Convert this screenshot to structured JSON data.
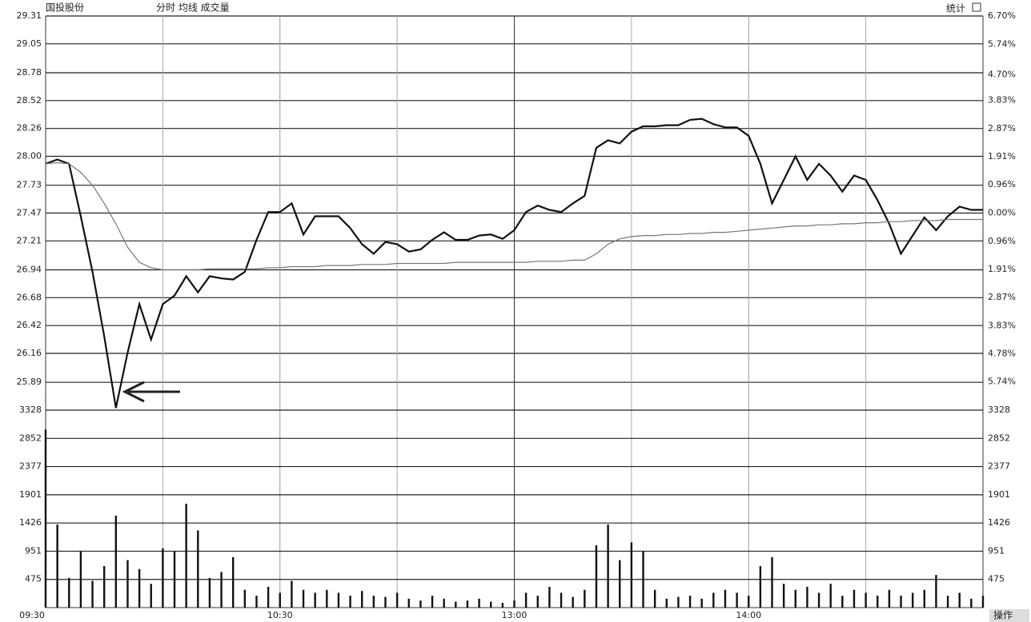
{
  "header": {
    "title": "国投股份",
    "tabs": "分时 均线 成交量",
    "stat": "统计",
    "action": "操作"
  },
  "chart_data": [
    {
      "type": "line",
      "x": [
        0,
        3,
        6,
        9,
        12,
        15,
        18,
        21,
        24,
        27,
        30,
        33,
        36,
        39,
        42,
        45,
        48,
        51,
        54,
        57,
        60,
        63,
        66,
        69,
        72,
        75,
        78,
        81,
        84,
        87,
        90,
        93,
        96,
        99,
        102,
        105,
        108,
        111,
        114,
        117,
        120,
        123,
        126,
        129,
        132,
        135,
        138,
        141,
        144,
        147,
        150,
        153,
        156,
        159,
        162,
        165,
        168,
        171,
        174,
        177,
        180,
        183,
        186,
        189,
        192,
        195,
        198,
        201,
        204,
        207,
        210,
        213,
        216,
        219,
        222,
        225,
        228,
        231,
        234,
        237,
        240
      ],
      "xlim": [
        0,
        240
      ],
      "xticks": [
        {
          "value": 0,
          "label": "09:30"
        },
        {
          "value": 60,
          "label": "10:30"
        },
        {
          "value": 120,
          "label": "13:00"
        },
        {
          "value": 180,
          "label": "14:00"
        }
      ],
      "series": [
        {
          "color": "#111111",
          "values": [
            27.93,
            27.97,
            27.93,
            27.44,
            26.92,
            26.32,
            25.65,
            26.17,
            26.62,
            26.29,
            26.62,
            26.7,
            26.88,
            26.73,
            26.88,
            26.86,
            26.85,
            26.92,
            27.22,
            27.48,
            27.48,
            27.56,
            27.27,
            27.44,
            27.44,
            27.44,
            27.33,
            27.18,
            27.09,
            27.2,
            27.18,
            27.11,
            27.13,
            27.22,
            27.29,
            27.22,
            27.22,
            27.26,
            27.27,
            27.23,
            27.31,
            27.48,
            27.54,
            27.5,
            27.48,
            27.56,
            27.63,
            28.08,
            28.15,
            28.12,
            28.23,
            28.28,
            28.28,
            28.29,
            28.29,
            28.34,
            28.35,
            28.3,
            28.27,
            28.27,
            28.19,
            27.93,
            27.56,
            27.78,
            28.0,
            27.78,
            27.93,
            27.82,
            27.67,
            27.82,
            27.78,
            27.59,
            27.37,
            27.09,
            27.26,
            27.43,
            27.31,
            27.44,
            27.53,
            27.5,
            27.5
          ]
        },
        {
          "color": "#777777",
          "values": [
            27.93,
            27.94,
            27.93,
            27.85,
            27.73,
            27.56,
            27.37,
            27.15,
            27.01,
            26.96,
            26.94,
            26.94,
            26.94,
            26.94,
            26.95,
            26.95,
            26.95,
            26.95,
            26.95,
            26.96,
            26.96,
            26.97,
            26.97,
            26.97,
            26.98,
            26.98,
            26.98,
            26.99,
            26.99,
            26.99,
            27.0,
            27.0,
            27.0,
            27.0,
            27.0,
            27.01,
            27.01,
            27.01,
            27.01,
            27.01,
            27.01,
            27.01,
            27.02,
            27.02,
            27.02,
            27.03,
            27.03,
            27.09,
            27.18,
            27.23,
            27.25,
            27.26,
            27.26,
            27.27,
            27.27,
            27.28,
            27.28,
            27.29,
            27.29,
            27.3,
            27.31,
            27.32,
            27.33,
            27.34,
            27.35,
            27.35,
            27.36,
            27.36,
            27.37,
            27.37,
            27.38,
            27.38,
            27.39,
            27.39,
            27.4,
            27.4,
            27.4,
            27.41,
            27.41,
            27.41,
            27.41
          ]
        }
      ],
      "ylim": [
        25.63,
        29.31
      ],
      "yticks": [
        29.31,
        29.05,
        28.78,
        28.52,
        28.26,
        {
          "value": 28,
          "label": "28.00"
        },
        27.73,
        27.47,
        27.21,
        26.94,
        26.68,
        26.42,
        26.16,
        25.89
      ],
      "y2lim": [
        -6.7,
        6.7
      ],
      "y2ticks": [
        {
          "value": 6.7,
          "label": "6.70%"
        },
        {
          "value": 5.74,
          "label": "5.74%"
        },
        {
          "value": 4.7,
          "label": "4.70%"
        },
        {
          "value": 3.83,
          "label": "3.83%"
        },
        {
          "value": 2.87,
          "label": "2.87%"
        },
        {
          "value": 1.91,
          "label": "1.91%"
        },
        {
          "value": 0.96,
          "label": "0.96%"
        },
        {
          "value": 0,
          "label": "0.00%"
        },
        {
          "value": -0.96,
          "label": "0.96%"
        },
        {
          "value": -1.91,
          "label": "1.91%"
        },
        {
          "value": -2.87,
          "label": "2.87%"
        },
        {
          "value": -3.83,
          "label": "3.83%"
        },
        {
          "value": -4.78,
          "label": "4.78%"
        },
        {
          "value": -5.74,
          "label": "5.74%"
        }
      ],
      "grid": true
    },
    {
      "type": "bar",
      "x": [
        0,
        3,
        6,
        9,
        12,
        15,
        18,
        21,
        24,
        27,
        30,
        33,
        36,
        39,
        42,
        45,
        48,
        51,
        54,
        57,
        60,
        63,
        66,
        69,
        72,
        75,
        78,
        81,
        84,
        87,
        90,
        93,
        96,
        99,
        102,
        105,
        108,
        111,
        114,
        117,
        120,
        123,
        126,
        129,
        132,
        135,
        138,
        141,
        144,
        147,
        150,
        153,
        156,
        159,
        162,
        165,
        168,
        171,
        174,
        177,
        180,
        183,
        186,
        189,
        192,
        195,
        198,
        201,
        204,
        207,
        210,
        213,
        216,
        219,
        222,
        225,
        228,
        231,
        234,
        237,
        240
      ],
      "xlim": [
        0,
        240
      ],
      "values": [
        3000,
        1400,
        500,
        950,
        450,
        700,
        1550,
        800,
        650,
        400,
        1000,
        950,
        1750,
        1300,
        500,
        600,
        850,
        300,
        200,
        350,
        250,
        450,
        300,
        250,
        300,
        250,
        200,
        280,
        200,
        180,
        250,
        150,
        120,
        200,
        150,
        100,
        120,
        150,
        100,
        80,
        120,
        250,
        200,
        350,
        250,
        180,
        300,
        1050,
        1400,
        800,
        1100,
        950,
        300,
        150,
        180,
        200,
        150,
        250,
        300,
        250,
        200,
        700,
        850,
        400,
        300,
        350,
        250,
        400,
        200,
        300,
        250,
        200,
        300,
        200,
        250,
        300,
        550,
        200,
        250,
        150,
        200
      ],
      "color": "#111111",
      "ylim": [
        0,
        3328
      ],
      "yticks": [
        3328,
        2852,
        2377,
        1901,
        1426,
        951,
        475
      ],
      "grid": true
    }
  ]
}
